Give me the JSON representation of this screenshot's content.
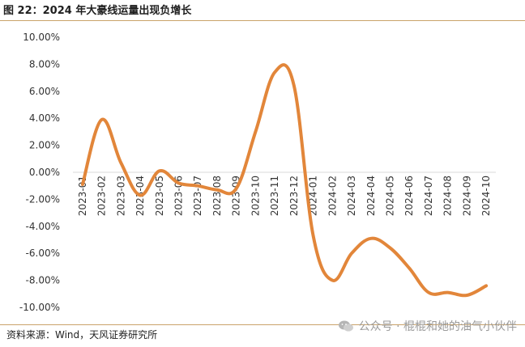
{
  "title": "图 22：2024 年大豪线运量出现负增长",
  "source": "资料来源：Wind，天风证券研究所",
  "watermark": "公众号 · 棍棍和她的油气小伙伴",
  "colors": {
    "line": "#E2863A",
    "rule": "#C9A36A",
    "zero_line": "#D9D9D9"
  },
  "chart_data": {
    "type": "line",
    "categories": [
      "2023-01",
      "2023-02",
      "2023-03",
      "2023-04",
      "2023-05",
      "2023-06",
      "2023-07",
      "2023-08",
      "2023-09",
      "2023-10",
      "2023-11",
      "2023-12",
      "2024-01",
      "2024-02",
      "2024-03",
      "2024-04",
      "2024-05",
      "2024-06",
      "2024-07",
      "2024-08",
      "2024-09",
      "2024-10"
    ],
    "series": [
      {
        "values": [
          -0.9,
          3.9,
          0.7,
          -1.7,
          0.1,
          -0.8,
          -1.0,
          -1.3,
          -1.2,
          3.0,
          7.4,
          6.4,
          -4.7,
          -8.0,
          -6.0,
          -4.9,
          -5.6,
          -7.1,
          -8.9,
          -8.9,
          -9.1,
          -8.4
        ]
      }
    ],
    "yticks": [
      "10.00%",
      "8.00%",
      "6.00%",
      "4.00%",
      "2.00%",
      "0.00%",
      "-2.00%",
      "-4.00%",
      "-6.00%",
      "-8.00%",
      "-10.00%"
    ],
    "ylim": [
      -10,
      10
    ],
    "xlabel": "",
    "ylabel": "",
    "grid": false,
    "legend": "none"
  }
}
